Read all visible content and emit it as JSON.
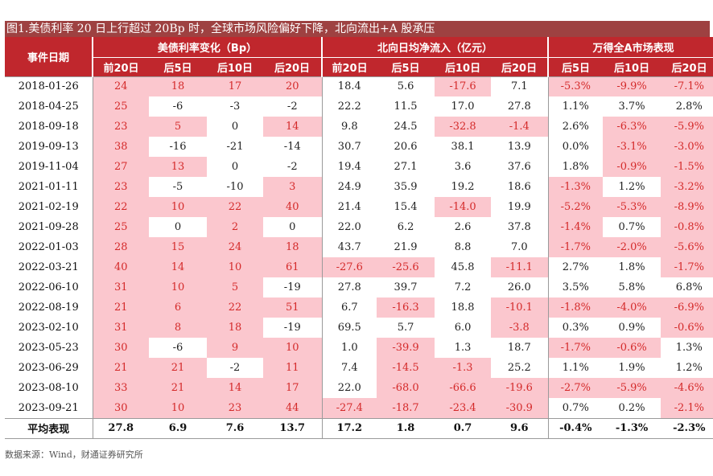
{
  "title": "图1.美债利率 20 日上行超过 20Bp 时，全球市场风险偏好下降，北向流出+A 股承压",
  "header": {
    "event_date": "事件日期",
    "groups": [
      "美债利率变化（Bp）",
      "北向日均净流入（亿元）",
      "万得全A市场表现"
    ],
    "group1_cols": [
      "前20日",
      "后5日",
      "后10日",
      "后20日"
    ],
    "group2_cols": [
      "前20日",
      "后5日",
      "后10日",
      "后20日"
    ],
    "group3_cols": [
      "后5日",
      "后10日",
      "后20日"
    ]
  },
  "rows": [
    {
      "date": "2018-01-26",
      "v": [
        "24",
        "18",
        "17",
        "20",
        "18.4",
        "5.6",
        "-17.6",
        "7.1",
        "-5.3%",
        "-9.9%",
        "-7.1%"
      ],
      "hl": [
        1,
        1,
        1,
        1,
        0,
        0,
        1,
        0,
        1,
        1,
        1
      ]
    },
    {
      "date": "2018-04-25",
      "v": [
        "25",
        "-6",
        "-3",
        "-2",
        "22.2",
        "11.5",
        "17.0",
        "27.8",
        "1.1%",
        "3.7%",
        "2.8%"
      ],
      "hl": [
        1,
        0,
        0,
        0,
        0,
        0,
        0,
        0,
        0,
        0,
        0
      ]
    },
    {
      "date": "2018-09-18",
      "v": [
        "23",
        "5",
        "0",
        "14",
        "9.8",
        "24.5",
        "-32.8",
        "-1.4",
        "2.6%",
        "-6.3%",
        "-5.9%"
      ],
      "hl": [
        1,
        1,
        0,
        1,
        0,
        0,
        1,
        1,
        0,
        1,
        1
      ]
    },
    {
      "date": "2019-09-13",
      "v": [
        "38",
        "-16",
        "-21",
        "-14",
        "30.7",
        "20.6",
        "38.1",
        "13.9",
        "0.0%",
        "-3.1%",
        "-3.0%"
      ],
      "hl": [
        1,
        0,
        0,
        0,
        0,
        0,
        0,
        0,
        0,
        1,
        1
      ]
    },
    {
      "date": "2019-11-04",
      "v": [
        "27",
        "13",
        "0",
        "-2",
        "19.4",
        "27.1",
        "3.6",
        "37.6",
        "1.8%",
        "-0.9%",
        "-1.5%"
      ],
      "hl": [
        1,
        1,
        0,
        0,
        0,
        0,
        0,
        0,
        0,
        1,
        1
      ]
    },
    {
      "date": "2021-01-11",
      "v": [
        "23",
        "-5",
        "-10",
        "3",
        "24.9",
        "35.9",
        "19.2",
        "18.6",
        "-1.3%",
        "1.2%",
        "-3.2%"
      ],
      "hl": [
        1,
        0,
        0,
        1,
        0,
        0,
        0,
        0,
        1,
        0,
        1
      ]
    },
    {
      "date": "2021-02-19",
      "v": [
        "22",
        "10",
        "22",
        "40",
        "21.4",
        "15.4",
        "-14.0",
        "19.9",
        "-5.2%",
        "-5.3%",
        "-8.9%"
      ],
      "hl": [
        1,
        1,
        1,
        1,
        0,
        0,
        1,
        0,
        1,
        1,
        1
      ]
    },
    {
      "date": "2021-09-28",
      "v": [
        "25",
        "0",
        "2",
        "0",
        "22.0",
        "6.2",
        "2.6",
        "37.8",
        "-1.4%",
        "0.7%",
        "-0.8%"
      ],
      "hl": [
        1,
        0,
        1,
        0,
        0,
        0,
        0,
        0,
        1,
        0,
        1
      ]
    },
    {
      "date": "2022-01-03",
      "v": [
        "28",
        "15",
        "24",
        "18",
        "43.7",
        "21.9",
        "8.8",
        "7.0",
        "-1.7%",
        "-2.0%",
        "-5.6%"
      ],
      "hl": [
        1,
        1,
        1,
        1,
        0,
        0,
        0,
        0,
        1,
        1,
        1
      ]
    },
    {
      "date": "2022-03-21",
      "v": [
        "40",
        "14",
        "10",
        "61",
        "-27.6",
        "-25.6",
        "45.8",
        "-11.1",
        "2.7%",
        "1.8%",
        "-1.7%"
      ],
      "hl": [
        1,
        1,
        1,
        1,
        1,
        1,
        0,
        1,
        0,
        0,
        1
      ]
    },
    {
      "date": "2022-06-10",
      "v": [
        "31",
        "10",
        "5",
        "-19",
        "27.8",
        "39.7",
        "7.2",
        "26.0",
        "3.5%",
        "5.8%",
        "6.8%"
      ],
      "hl": [
        1,
        1,
        1,
        0,
        0,
        0,
        0,
        0,
        0,
        0,
        0
      ]
    },
    {
      "date": "2022-08-19",
      "v": [
        "21",
        "6",
        "22",
        "51",
        "6.7",
        "-16.3",
        "18.8",
        "-10.1",
        "-1.8%",
        "-4.0%",
        "-6.9%"
      ],
      "hl": [
        1,
        1,
        1,
        1,
        0,
        1,
        0,
        1,
        1,
        1,
        1
      ]
    },
    {
      "date": "2023-02-10",
      "v": [
        "31",
        "8",
        "18",
        "-19",
        "69.5",
        "5.7",
        "6.0",
        "-3.8",
        "0.3%",
        "0.9%",
        "-0.6%"
      ],
      "hl": [
        1,
        1,
        1,
        0,
        0,
        0,
        0,
        1,
        0,
        0,
        1
      ]
    },
    {
      "date": "2023-05-23",
      "v": [
        "30",
        "-6",
        "9",
        "10",
        "1.0",
        "-39.9",
        "1.3",
        "18.7",
        "-1.7%",
        "-0.6%",
        "1.3%"
      ],
      "hl": [
        1,
        0,
        1,
        1,
        0,
        1,
        0,
        0,
        1,
        1,
        0
      ]
    },
    {
      "date": "2023-06-29",
      "v": [
        "21",
        "21",
        "-2",
        "11",
        "7.4",
        "-14.5",
        "-1.3",
        "25.2",
        "1.1%",
        "1.9%",
        "1.2%"
      ],
      "hl": [
        1,
        1,
        0,
        1,
        0,
        1,
        1,
        0,
        0,
        0,
        0
      ]
    },
    {
      "date": "2023-08-10",
      "v": [
        "33",
        "21",
        "14",
        "17",
        "22.0",
        "-68.0",
        "-66.6",
        "-19.6",
        "-2.7%",
        "-5.9%",
        "-4.6%"
      ],
      "hl": [
        1,
        1,
        1,
        1,
        0,
        1,
        1,
        1,
        1,
        1,
        1
      ]
    },
    {
      "date": "2023-09-21",
      "v": [
        "30",
        "10",
        "23",
        "44",
        "-27.4",
        "-18.7",
        "-23.4",
        "-30.9",
        "0.7%",
        "0.2%",
        "-2.1%"
      ],
      "hl": [
        1,
        1,
        1,
        1,
        1,
        1,
        1,
        1,
        0,
        0,
        1
      ]
    }
  ],
  "average": {
    "label": "平均表现",
    "v": [
      "27.8",
      "6.9",
      "7.6",
      "13.7",
      "17.2",
      "1.8",
      "0.7",
      "9.6",
      "-0.4%",
      "-1.3%",
      "-2.3%"
    ]
  },
  "source": "数据来源：Wind，财通证券研究所",
  "colors": {
    "header": "#c0272d",
    "title_bar": "#9e4141",
    "highlight": "#fbc7ce",
    "highlight_text": "#d42a2a"
  }
}
